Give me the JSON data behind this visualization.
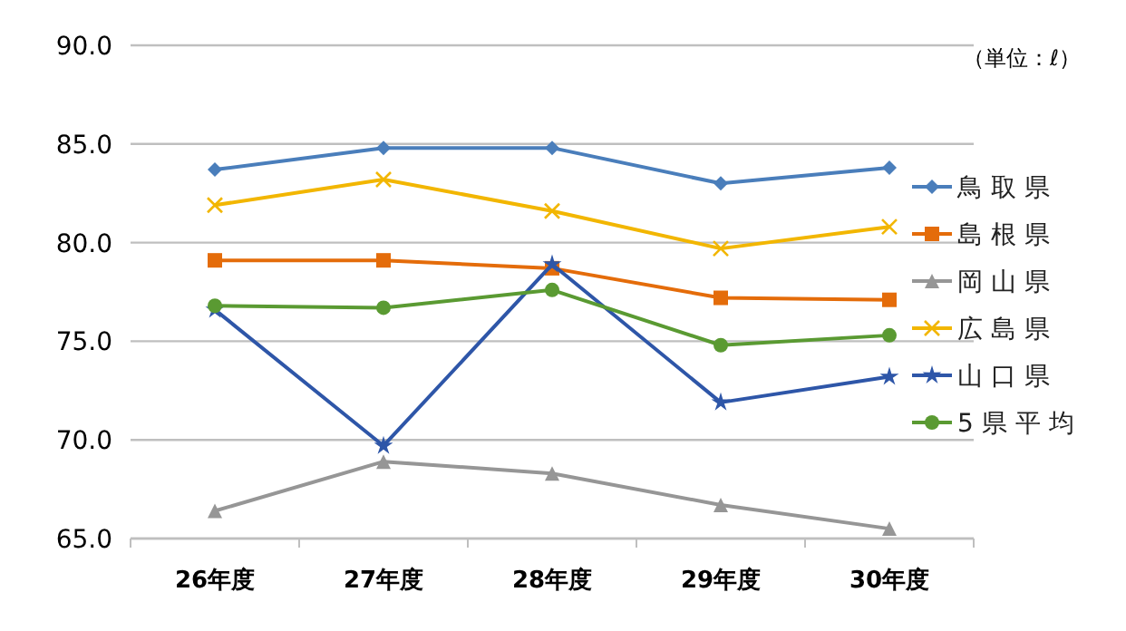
{
  "chart_data": {
    "type": "line",
    "categories": [
      "26年度",
      "27年度",
      "28年度",
      "29年度",
      "30年度"
    ],
    "series": [
      {
        "name": "鳥 取 県",
        "color": "#4a7ebb",
        "marker": "diamond",
        "values": [
          83.7,
          84.8,
          84.8,
          83.0,
          83.8
        ]
      },
      {
        "name": "島 根 県",
        "color": "#e46c0a",
        "marker": "square",
        "values": [
          79.1,
          79.1,
          78.7,
          77.2,
          77.1
        ]
      },
      {
        "name": "岡 山 県",
        "color": "#969696",
        "marker": "triangle",
        "values": [
          66.4,
          68.9,
          68.3,
          66.7,
          65.5
        ]
      },
      {
        "name": "広 島 県",
        "color": "#f2b600",
        "marker": "cross",
        "values": [
          81.9,
          83.2,
          81.6,
          79.7,
          80.8
        ]
      },
      {
        "name": "山 口 県",
        "color": "#2e56a8",
        "marker": "star",
        "values": [
          76.6,
          69.7,
          78.9,
          71.9,
          73.2
        ]
      },
      {
        "name": "5 県 平 均",
        "color": "#5a9a32",
        "marker": "circle",
        "values": [
          76.8,
          76.7,
          77.6,
          74.8,
          75.3
        ]
      }
    ],
    "ylim": [
      65,
      90
    ],
    "yticks": [
      {
        "value": 65,
        "label": "65.0"
      },
      {
        "value": 70,
        "label": "70.0"
      },
      {
        "value": 75,
        "label": "75.0"
      },
      {
        "value": 80,
        "label": "80.0"
      },
      {
        "value": 85,
        "label": "85.0"
      },
      {
        "value": 90,
        "label": "90.0"
      }
    ],
    "grid": "y",
    "legend": "right",
    "line_style": "solid",
    "annotations": [
      "（単位：ℓ）"
    ]
  }
}
